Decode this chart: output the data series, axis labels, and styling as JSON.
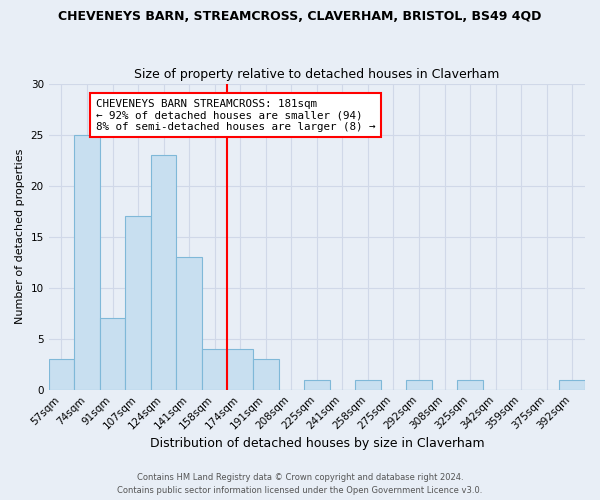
{
  "title": "CHEVENEYS BARN, STREAMCROSS, CLAVERHAM, BRISTOL, BS49 4QD",
  "subtitle": "Size of property relative to detached houses in Claverham",
  "xlabel": "Distribution of detached houses by size in Claverham",
  "ylabel": "Number of detached properties",
  "bar_color": "#c8dff0",
  "bar_edge_color": "#7fb8d8",
  "background_color": "#e8eef6",
  "grid_color": "#d0d8e8",
  "bin_labels": [
    "57sqm",
    "74sqm",
    "91sqm",
    "107sqm",
    "124sqm",
    "141sqm",
    "158sqm",
    "174sqm",
    "191sqm",
    "208sqm",
    "225sqm",
    "241sqm",
    "258sqm",
    "275sqm",
    "292sqm",
    "308sqm",
    "325sqm",
    "342sqm",
    "359sqm",
    "375sqm",
    "392sqm"
  ],
  "bin_values": [
    3,
    25,
    7,
    17,
    23,
    13,
    4,
    4,
    3,
    0,
    1,
    0,
    1,
    0,
    1,
    0,
    1,
    0,
    0,
    0,
    1
  ],
  "property_line_bin_index": 7,
  "property_line_label": "CHEVENEYS BARN STREAMCROSS: 181sqm",
  "annotation_line1": "← 92% of detached houses are smaller (94)",
  "annotation_line2": "8% of semi-detached houses are larger (8) →",
  "ylim": [
    0,
    30
  ],
  "yticks": [
    0,
    5,
    10,
    15,
    20,
    25,
    30
  ],
  "footer1": "Contains HM Land Registry data © Crown copyright and database right 2024.",
  "footer2": "Contains public sector information licensed under the Open Government Licence v3.0."
}
